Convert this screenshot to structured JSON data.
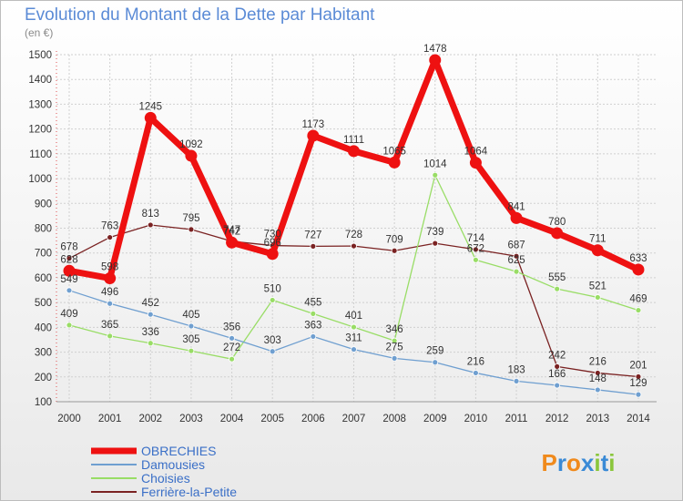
{
  "chart_data": {
    "type": "line",
    "title": "Evolution du Montant de la Dette par Habitant",
    "subtitle": "(en €)",
    "x": [
      "2000",
      "2001",
      "2002",
      "2003",
      "2004",
      "2005",
      "2006",
      "2007",
      "2008",
      "2009",
      "2010",
      "2011",
      "2012",
      "2013",
      "2014"
    ],
    "ylim": [
      100,
      1500
    ],
    "yticks": [
      100,
      200,
      300,
      400,
      500,
      600,
      700,
      800,
      900,
      1000,
      1100,
      1200,
      1300,
      1400,
      1500
    ],
    "grid": true,
    "legend_position": "bottom-left",
    "series": [
      {
        "name": "Ferrière-la-Petite",
        "color": "#7a2222",
        "values": [
          678,
          763,
          813,
          795,
          747,
          730,
          727,
          728,
          709,
          739,
          714,
          687,
          242,
          216,
          201
        ]
      },
      {
        "name": "Choisies",
        "color": "#99dd66",
        "values": [
          409,
          365,
          336,
          305,
          272,
          510,
          455,
          401,
          346,
          1014,
          672,
          625,
          555,
          521,
          469
        ]
      },
      {
        "name": "Damousies",
        "color": "#6f9fd0",
        "values": [
          549,
          496,
          452,
          405,
          356,
          303,
          363,
          311,
          275,
          259,
          216,
          183,
          166,
          148,
          129
        ]
      },
      {
        "name": "OBRECHIES",
        "color": "#ee1111",
        "values": [
          628,
          598,
          1245,
          1092,
          742,
          696,
          1173,
          1111,
          1065,
          1478,
          1064,
          841,
          780,
          711,
          633
        ]
      }
    ],
    "labels": {
      "Ferrière-la-Petite": [
        "678",
        "763",
        "813",
        "795",
        "747",
        "730",
        "727",
        "728",
        "709",
        "739",
        "714",
        "687",
        "242",
        "216",
        "201"
      ],
      "Choisies": [
        "409",
        "365",
        "336",
        "305",
        "272",
        "510",
        "455",
        "401",
        "346",
        "1014",
        "672",
        "625",
        "555",
        "521",
        "469"
      ],
      "Damousies": [
        "549",
        "496",
        "452",
        "405",
        "356",
        "303",
        "363",
        "311",
        "275",
        "259",
        "216",
        "183",
        "166",
        "148",
        "129"
      ],
      "OBRECHIES": [
        "628",
        "598",
        "1245",
        "1092",
        "742",
        "696",
        "1173",
        "1111",
        "1065",
        "1478",
        "1064",
        "841",
        "780",
        "711",
        "633"
      ]
    }
  },
  "legend": {
    "items": [
      {
        "name": "OBRECHIES",
        "color": "#ee1111",
        "bold": true
      },
      {
        "name": "Damousies",
        "color": "#6f9fd0",
        "bold": false
      },
      {
        "name": "Choisies",
        "color": "#99dd66",
        "bold": false
      },
      {
        "name": "Ferrière-la-Petite",
        "color": "#7a2222",
        "bold": false
      }
    ]
  },
  "logo": {
    "text": "Proxiti"
  }
}
